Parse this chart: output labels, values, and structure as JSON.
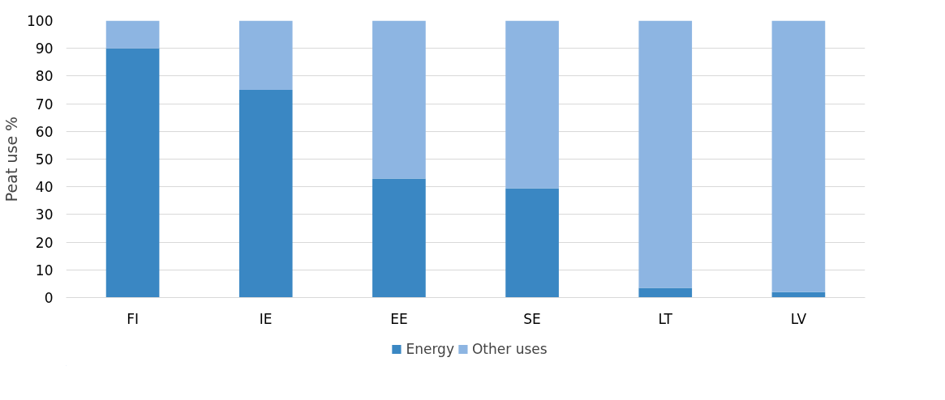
{
  "chart_data": {
    "type": "bar",
    "stacked": true,
    "ylabel": "Peat use %",
    "categories": [
      "FI",
      "IE",
      "EE",
      "SE",
      "LT",
      "LV"
    ],
    "series": [
      {
        "name": "Energy",
        "color": "#3a87c3",
        "values": [
          90,
          75,
          43,
          39.5,
          3.5,
          2
        ]
      },
      {
        "name": "Other uses",
        "color": "#8db5e2",
        "values": [
          10,
          25,
          57,
          60.5,
          96.5,
          98
        ]
      }
    ],
    "ylim": [
      0,
      100
    ],
    "yticks": [
      0,
      10,
      20,
      30,
      40,
      50,
      60,
      70,
      80,
      90,
      100
    ],
    "grid": "y",
    "legend": "bottom"
  }
}
